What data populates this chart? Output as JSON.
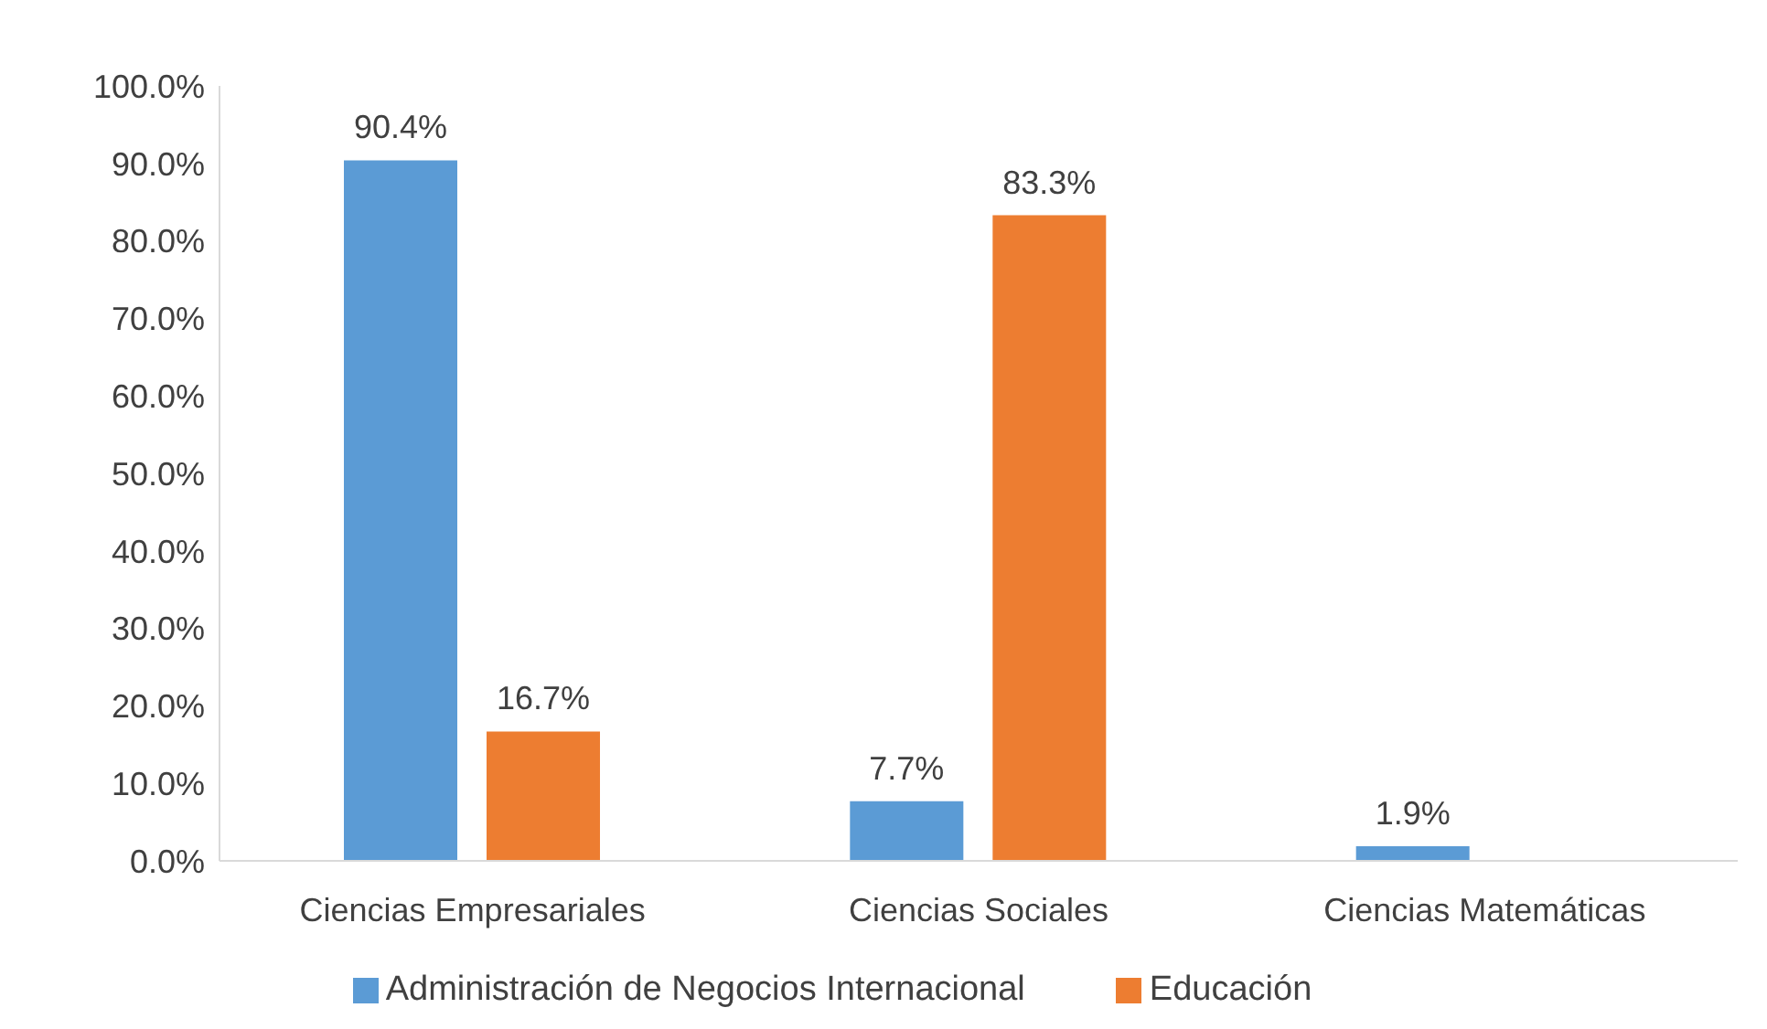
{
  "chart_data": {
    "type": "bar",
    "categories": [
      "Ciencias Empresariales",
      "Ciencias Sociales",
      "Ciencias Matemáticas"
    ],
    "series": [
      {
        "name": "Administración de Negocios Internacional",
        "color": "#5b9bd5",
        "values": [
          90.4,
          7.7,
          1.9
        ],
        "value_labels": [
          "90.4%",
          "7.7%",
          "1.9%"
        ]
      },
      {
        "name": "Educación",
        "color": "#ed7d31",
        "values": [
          16.7,
          83.3,
          null
        ],
        "value_labels": [
          "16.7%",
          "83.3%",
          null
        ]
      }
    ],
    "ylim": [
      0,
      100
    ],
    "yticks": [
      {
        "value": 0,
        "label": "0.0%"
      },
      {
        "value": 10,
        "label": "10.0%"
      },
      {
        "value": 20,
        "label": "20.0%"
      },
      {
        "value": 30,
        "label": "30.0%"
      },
      {
        "value": 40,
        "label": "40.0%"
      },
      {
        "value": 50,
        "label": "50.0%"
      },
      {
        "value": 60,
        "label": "60.0%"
      },
      {
        "value": 70,
        "label": "70.0%"
      },
      {
        "value": 80,
        "label": "80.0%"
      },
      {
        "value": 90,
        "label": "90.0%"
      },
      {
        "value": 100,
        "label": "100.0%"
      }
    ],
    "grid": false,
    "legend": "bottom"
  }
}
